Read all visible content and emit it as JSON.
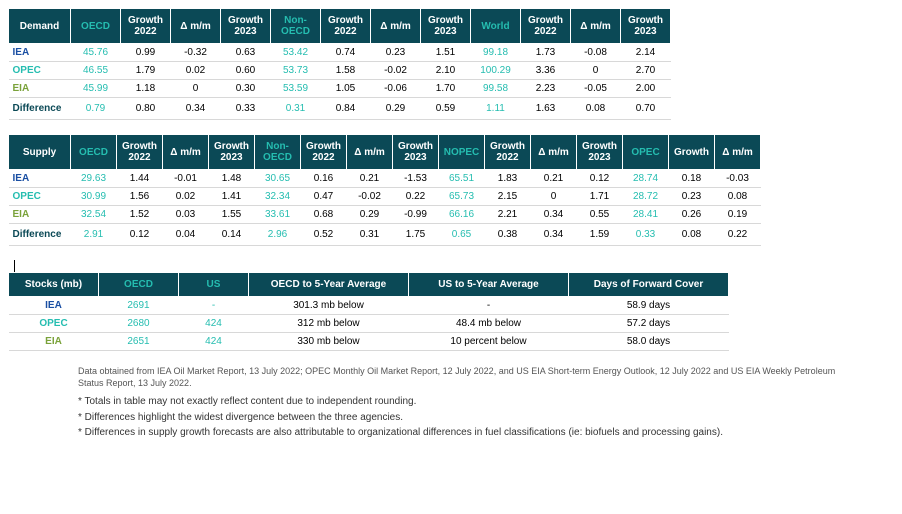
{
  "demand": {
    "headers": [
      {
        "t": "Demand",
        "hl": false
      },
      {
        "t": "OECD",
        "hl": true
      },
      {
        "t": "Growth 2022",
        "hl": false
      },
      {
        "t": "Δ m/m",
        "hl": false
      },
      {
        "t": "Growth 2023",
        "hl": false
      },
      {
        "t": "Non-OECD",
        "hl": true
      },
      {
        "t": "Growth 2022",
        "hl": false
      },
      {
        "t": "Δ m/m",
        "hl": false
      },
      {
        "t": "Growth 2023",
        "hl": false
      },
      {
        "t": "World",
        "hl": true
      },
      {
        "t": "Growth 2022",
        "hl": false
      },
      {
        "t": "Δ m/m",
        "hl": false
      },
      {
        "t": "Growth 2023",
        "hl": false
      }
    ],
    "rows": [
      {
        "cls": "row-iea",
        "label": "IEA",
        "cells": [
          {
            "v": "45.76",
            "hl": true
          },
          {
            "v": "0.99"
          },
          {
            "v": "-0.32"
          },
          {
            "v": "0.63"
          },
          {
            "v": "53.42",
            "hl": true
          },
          {
            "v": "0.74"
          },
          {
            "v": "0.23"
          },
          {
            "v": "1.51"
          },
          {
            "v": "99.18",
            "hl": true
          },
          {
            "v": "1.73"
          },
          {
            "v": "-0.08"
          },
          {
            "v": "2.14"
          }
        ]
      },
      {
        "cls": "row-opec",
        "label": "OPEC",
        "cells": [
          {
            "v": "46.55",
            "hl": true
          },
          {
            "v": "1.79"
          },
          {
            "v": "0.02"
          },
          {
            "v": "0.60"
          },
          {
            "v": "53.73",
            "hl": true
          },
          {
            "v": "1.58"
          },
          {
            "v": "-0.02"
          },
          {
            "v": "2.10"
          },
          {
            "v": "100.29",
            "hl": true
          },
          {
            "v": "3.36"
          },
          {
            "v": "0"
          },
          {
            "v": "2.70"
          }
        ]
      },
      {
        "cls": "row-eia",
        "label": "EIA",
        "cells": [
          {
            "v": "45.99",
            "hl": true
          },
          {
            "v": "1.18"
          },
          {
            "v": "0"
          },
          {
            "v": "0.30"
          },
          {
            "v": "53.59",
            "hl": true
          },
          {
            "v": "1.05"
          },
          {
            "v": "-0.06"
          },
          {
            "v": "1.70"
          },
          {
            "v": "99.58",
            "hl": true
          },
          {
            "v": "2.23"
          },
          {
            "v": "-0.05"
          },
          {
            "v": "2.00"
          }
        ]
      },
      {
        "cls": "row-diff",
        "label": "Difference",
        "cells": [
          {
            "v": "0.79",
            "hl": true
          },
          {
            "v": "0.80"
          },
          {
            "v": "0.34"
          },
          {
            "v": "0.33"
          },
          {
            "v": "0.31",
            "hl": true
          },
          {
            "v": "0.84"
          },
          {
            "v": "0.29"
          },
          {
            "v": "0.59"
          },
          {
            "v": "1.11",
            "hl": true
          },
          {
            "v": "1.63"
          },
          {
            "v": "0.08"
          },
          {
            "v": "0.70"
          }
        ]
      }
    ]
  },
  "supply": {
    "headers": [
      {
        "t": "Supply",
        "hl": false
      },
      {
        "t": "OECD",
        "hl": true
      },
      {
        "t": "Growth 2022",
        "hl": false
      },
      {
        "t": "Δ m/m",
        "hl": false
      },
      {
        "t": "Growth 2023",
        "hl": false
      },
      {
        "t": "Non-OECD",
        "hl": true
      },
      {
        "t": "Growth 2022",
        "hl": false
      },
      {
        "t": "Δ m/m",
        "hl": false
      },
      {
        "t": "Growth 2023",
        "hl": false
      },
      {
        "t": "NOPEC",
        "hl": true
      },
      {
        "t": "Growth 2022",
        "hl": false
      },
      {
        "t": "Δ m/m",
        "hl": false
      },
      {
        "t": "Growth 2023",
        "hl": false
      },
      {
        "t": "OPEC",
        "hl": true
      },
      {
        "t": "Growth",
        "hl": false
      },
      {
        "t": "Δ m/m",
        "hl": false
      }
    ],
    "rows": [
      {
        "cls": "row-iea",
        "label": "IEA",
        "cells": [
          {
            "v": "29.63",
            "hl": true
          },
          {
            "v": "1.44"
          },
          {
            "v": "-0.01"
          },
          {
            "v": "1.48"
          },
          {
            "v": "30.65",
            "hl": true
          },
          {
            "v": "0.16"
          },
          {
            "v": "0.21"
          },
          {
            "v": "-1.53"
          },
          {
            "v": "65.51",
            "hl": true
          },
          {
            "v": "1.83"
          },
          {
            "v": "0.21"
          },
          {
            "v": "0.12"
          },
          {
            "v": "28.74",
            "hl": true
          },
          {
            "v": "0.18"
          },
          {
            "v": "-0.03"
          }
        ]
      },
      {
        "cls": "row-opec",
        "label": "OPEC",
        "cells": [
          {
            "v": "30.99",
            "hl": true
          },
          {
            "v": "1.56"
          },
          {
            "v": "0.02"
          },
          {
            "v": "1.41"
          },
          {
            "v": "32.34",
            "hl": true
          },
          {
            "v": "0.47"
          },
          {
            "v": "-0.02"
          },
          {
            "v": "0.22"
          },
          {
            "v": "65.73",
            "hl": true
          },
          {
            "v": "2.15"
          },
          {
            "v": "0"
          },
          {
            "v": "1.71"
          },
          {
            "v": "28.72",
            "hl": true
          },
          {
            "v": "0.23"
          },
          {
            "v": "0.08"
          }
        ]
      },
      {
        "cls": "row-eia",
        "label": "EIA",
        "cells": [
          {
            "v": "32.54",
            "hl": true
          },
          {
            "v": "1.52"
          },
          {
            "v": "0.03"
          },
          {
            "v": "1.55"
          },
          {
            "v": "33.61",
            "hl": true
          },
          {
            "v": "0.68"
          },
          {
            "v": "0.29"
          },
          {
            "v": "-0.99"
          },
          {
            "v": "66.16",
            "hl": true
          },
          {
            "v": "2.21"
          },
          {
            "v": "0.34"
          },
          {
            "v": "0.55"
          },
          {
            "v": "28.41",
            "hl": true
          },
          {
            "v": "0.26"
          },
          {
            "v": "0.19"
          }
        ]
      },
      {
        "cls": "row-diff",
        "label": "Difference",
        "cells": [
          {
            "v": "2.91",
            "hl": true
          },
          {
            "v": "0.12"
          },
          {
            "v": "0.04"
          },
          {
            "v": "0.14"
          },
          {
            "v": "2.96",
            "hl": true
          },
          {
            "v": "0.52"
          },
          {
            "v": "0.31"
          },
          {
            "v": "1.75"
          },
          {
            "v": "0.65",
            "hl": true
          },
          {
            "v": "0.38"
          },
          {
            "v": "0.34"
          },
          {
            "v": "1.59"
          },
          {
            "v": "0.33",
            "hl": true
          },
          {
            "v": "0.08"
          },
          {
            "v": "0.22"
          }
        ]
      }
    ]
  },
  "stocks": {
    "headers": [
      {
        "t": "Stocks (mb)",
        "hl": false
      },
      {
        "t": "OECD",
        "hl": true
      },
      {
        "t": "US",
        "hl": true
      },
      {
        "t": "OECD to 5-Year Average",
        "hl": false
      },
      {
        "t": "US to 5-Year Average",
        "hl": false
      },
      {
        "t": "Days of Forward Cover",
        "hl": false
      }
    ],
    "rows": [
      {
        "cls": "row-iea",
        "label": "IEA",
        "cells": [
          {
            "v": "2691",
            "hl": true
          },
          {
            "v": "-",
            "hl": true
          },
          {
            "v": "301.3 mb below"
          },
          {
            "v": "-"
          },
          {
            "v": "58.9 days"
          }
        ]
      },
      {
        "cls": "row-opec",
        "label": "OPEC",
        "cells": [
          {
            "v": "2680",
            "hl": true
          },
          {
            "v": "424",
            "hl": true
          },
          {
            "v": "312 mb below"
          },
          {
            "v": "48.4 mb below"
          },
          {
            "v": "57.2 days"
          }
        ]
      },
      {
        "cls": "row-eia",
        "label": "EIA",
        "cells": [
          {
            "v": "2651",
            "hl": true
          },
          {
            "v": "424",
            "hl": true
          },
          {
            "v": "330 mb below"
          },
          {
            "v": "10 percent below"
          },
          {
            "v": "58.0 days"
          }
        ]
      }
    ]
  },
  "footnotes": {
    "source": "Data obtained from IEA Oil Market Report, 13 July 2022; OPEC Monthly Oil Market Report, 12 July 2022, and US EIA Short-term Energy Outlook, 12 July 2022 and US EIA Weekly Petroleum Status Report, 13 July 2022.",
    "n1": "* Totals in table may not exactly reflect content due to independent rounding.",
    "n2": "* Differences highlight the widest divergence between the three agencies.",
    "n3": "* Differences in supply growth forecasts are also attributable to organizational differences in fuel classifications (ie: biofuels and processing gains)."
  }
}
